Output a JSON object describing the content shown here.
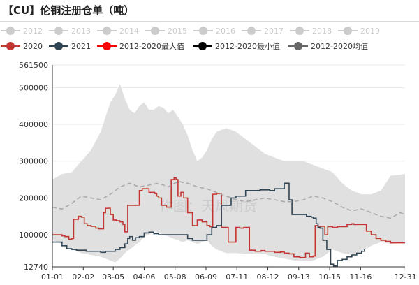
{
  "page": {
    "title": "【CU】伦铜注册仓单（吨）",
    "watermark": "作图：天风期货"
  },
  "chart_data": {
    "type": "line",
    "title": "【CU】伦铜注册仓单（吨）",
    "xlabel": "",
    "ylabel": "",
    "ylim": [
      12740,
      561500
    ],
    "xlim": [
      0,
      365
    ],
    "y_ticks": [
      "561500",
      "500000",
      "400000",
      "300000",
      "200000",
      "100000",
      "12740"
    ],
    "y_tick_values": [
      561500,
      500000,
      400000,
      300000,
      200000,
      100000,
      12740
    ],
    "x_ticks": [
      "01-01",
      "02-02",
      "03-05",
      "04-06",
      "05-08",
      "06-09",
      "07-11",
      "08-12",
      "09-13",
      "10-15",
      "11-16",
      "12-31"
    ],
    "x_tick_days": [
      0,
      32,
      63,
      95,
      127,
      159,
      191,
      223,
      255,
      287,
      319,
      364
    ],
    "grid": true,
    "legend": [
      {
        "name": "2012",
        "color": "#cccccc",
        "muted": true
      },
      {
        "name": "2013",
        "color": "#cccccc",
        "muted": true
      },
      {
        "name": "2014",
        "color": "#cccccc",
        "muted": true
      },
      {
        "name": "2015",
        "color": "#cccccc",
        "muted": true
      },
      {
        "name": "2016",
        "color": "#cccccc",
        "muted": true
      },
      {
        "name": "2017",
        "color": "#cccccc",
        "muted": true
      },
      {
        "name": "2018",
        "color": "#cccccc",
        "muted": true
      },
      {
        "name": "2019",
        "color": "#cccccc",
        "muted": true
      },
      {
        "name": "2020",
        "color": "#c23531",
        "muted": false
      },
      {
        "name": "2021",
        "color": "#2f4554",
        "muted": false
      },
      {
        "name": "2012-2020最大值",
        "color": "#ff0000",
        "muted": false
      },
      {
        "name": "2012-2020最小值",
        "color": "#000000",
        "muted": false
      },
      {
        "name": "2012-2020均值",
        "color": "#666666",
        "muted": false
      }
    ],
    "band": {
      "name": "2012-2020最小值至最大值区间",
      "color": "#e0e0e0",
      "days": [
        0,
        10,
        20,
        30,
        40,
        50,
        55,
        60,
        65,
        70,
        75,
        80,
        85,
        90,
        95,
        100,
        105,
        110,
        115,
        120,
        125,
        130,
        135,
        140,
        145,
        150,
        155,
        160,
        165,
        170,
        180,
        190,
        200,
        210,
        220,
        230,
        240,
        250,
        260,
        270,
        280,
        290,
        300,
        310,
        320,
        330,
        340,
        350,
        365
      ],
      "max": [
        250000,
        265000,
        270000,
        300000,
        330000,
        380000,
        420000,
        460000,
        480000,
        510000,
        470000,
        440000,
        430000,
        450000,
        460000,
        440000,
        440000,
        450000,
        445000,
        430000,
        440000,
        420000,
        400000,
        370000,
        330000,
        300000,
        310000,
        330000,
        360000,
        380000,
        390000,
        380000,
        360000,
        340000,
        320000,
        310000,
        300000,
        300000,
        300000,
        290000,
        280000,
        270000,
        240000,
        220000,
        210000,
        210000,
        220000,
        260000,
        265000
      ],
      "min": [
        85000,
        75000,
        60000,
        50000,
        45000,
        40000,
        35000,
        30000,
        25000,
        35000,
        50000,
        60000,
        70000,
        80000,
        95000,
        100000,
        110000,
        105000,
        100000,
        95000,
        90000,
        85000,
        80000,
        85000,
        80000,
        75000,
        80000,
        85000,
        70000,
        60000,
        50000,
        50000,
        48000,
        48000,
        47000,
        40000,
        35000,
        30000,
        28000,
        30000,
        40000,
        60000,
        50000,
        45000,
        55000,
        70000,
        80000,
        75000,
        80000
      ]
    },
    "series": [
      {
        "name": "2020",
        "color": "#c23531",
        "days": [
          0,
          10,
          13,
          17,
          20,
          22,
          27,
          30,
          33,
          36,
          40,
          45,
          48,
          53,
          55,
          60,
          63,
          66,
          70,
          73,
          75,
          78,
          82,
          85,
          90,
          93,
          97,
          100,
          103,
          106,
          108,
          110,
          113,
          118,
          120,
          123,
          126,
          128,
          130,
          133,
          136,
          140,
          145,
          148,
          150,
          155,
          160,
          163,
          166,
          170,
          175,
          178,
          182,
          186,
          190,
          194,
          198,
          204,
          210,
          216,
          220,
          225,
          230,
          236,
          240,
          245,
          250,
          256,
          260,
          262,
          266,
          270,
          272,
          275,
          278,
          282,
          285,
          290,
          295,
          300,
          305,
          310,
          312,
          320,
          325,
          330,
          335,
          340,
          345,
          350,
          355,
          360,
          365
        ],
        "values": [
          100000,
          97000,
          95000,
          88000,
          90000,
          142000,
          150000,
          148000,
          130000,
          125000,
          123000,
          118000,
          116000,
          160000,
          172000,
          155000,
          140000,
          138000,
          135000,
          128000,
          108000,
          180000,
          180000,
          180000,
          220000,
          225000,
          225000,
          215000,
          215000,
          212000,
          205000,
          200000,
          180000,
          175000,
          175000,
          250000,
          255000,
          250000,
          205000,
          215000,
          200000,
          160000,
          125000,
          125000,
          140000,
          135000,
          125000,
          122000,
          210000,
          212000,
          120000,
          120000,
          80000,
          80000,
          120000,
          118000,
          120000,
          58000,
          55000,
          57000,
          55000,
          55000,
          52000,
          53000,
          50000,
          48000,
          40000,
          38000,
          38000,
          50000,
          40000,
          42000,
          125000,
          123000,
          123000,
          100000,
          122000,
          120000,
          122000,
          122000,
          128000,
          130000,
          128000,
          128000,
          110000,
          100000,
          90000,
          85000,
          82000,
          78000,
          78000,
          78000,
          78000
        ]
      },
      {
        "name": "2021",
        "color": "#2f4554",
        "days": [
          0,
          5,
          10,
          15,
          20,
          25,
          30,
          35,
          40,
          45,
          50,
          55,
          60,
          65,
          70,
          75,
          78,
          80,
          83,
          86,
          90,
          95,
          100,
          105,
          110,
          115,
          120,
          125,
          130,
          135,
          140,
          145,
          150,
          155,
          160,
          165,
          170,
          175,
          180,
          185,
          190,
          195,
          200,
          205,
          210,
          215,
          220,
          225,
          230,
          235,
          240,
          242,
          245,
          248,
          252,
          256,
          260,
          263,
          266,
          268,
          270,
          273,
          275,
          277,
          280,
          284,
          288,
          291,
          295,
          300,
          305,
          310,
          315,
          320,
          323
        ],
        "values": [
          80000,
          80000,
          70000,
          62000,
          60000,
          58000,
          58000,
          55000,
          55000,
          55000,
          52000,
          55000,
          55000,
          60000,
          65000,
          75000,
          90000,
          95000,
          85000,
          92000,
          95000,
          105000,
          107000,
          103000,
          100000,
          100000,
          100000,
          100000,
          100000,
          100000,
          90000,
          85000,
          85000,
          85000,
          100000,
          120000,
          125000,
          180000,
          180000,
          200000,
          205000,
          205000,
          220000,
          220000,
          220000,
          222000,
          222000,
          220000,
          225000,
          225000,
          240000,
          240000,
          195000,
          155000,
          155000,
          155000,
          155000,
          150000,
          150000,
          148000,
          145000,
          130000,
          120000,
          118000,
          85000,
          60000,
          20000,
          15000,
          30000,
          33000,
          40000,
          45000,
          50000,
          55000,
          60000
        ]
      },
      {
        "name": "2012-2020均值",
        "color": "#aaaaaa",
        "dashed": true,
        "days": [
          0,
          10,
          20,
          30,
          40,
          50,
          60,
          70,
          80,
          90,
          100,
          110,
          120,
          130,
          140,
          150,
          160,
          170,
          180,
          190,
          200,
          210,
          220,
          230,
          240,
          250,
          260,
          270,
          280,
          290,
          300,
          310,
          320,
          330,
          340,
          350,
          360,
          365
        ],
        "values": [
          175000,
          170000,
          185000,
          205000,
          200000,
          195000,
          210000,
          230000,
          240000,
          230000,
          235000,
          240000,
          230000,
          245000,
          240000,
          230000,
          225000,
          215000,
          205000,
          195000,
          190000,
          195000,
          200000,
          195000,
          190000,
          190000,
          195000,
          205000,
          200000,
          190000,
          175000,
          165000,
          170000,
          160000,
          150000,
          145000,
          160000,
          155000
        ]
      }
    ]
  }
}
